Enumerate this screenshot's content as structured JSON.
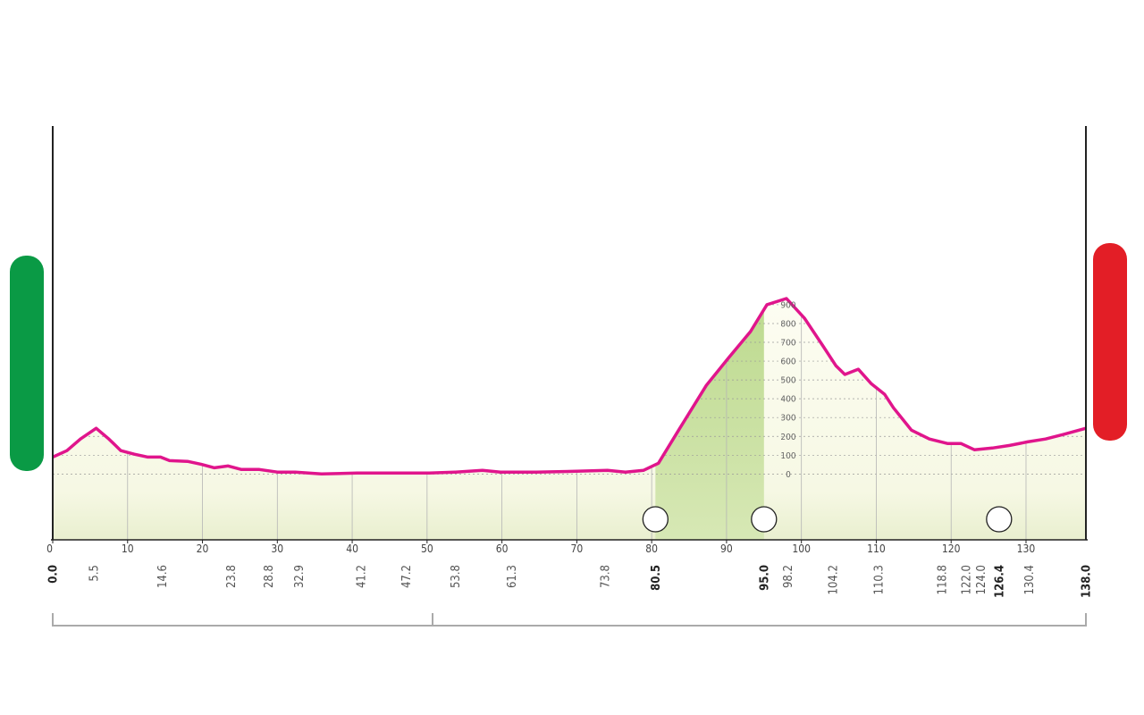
{
  "chart_data": {
    "type": "area",
    "line_color": "#e0158c",
    "fill_color": "#fbfbea",
    "climb_color": "#b9d889",
    "grid": true,
    "xlim": [
      0,
      138
    ],
    "xticks": [
      0,
      10,
      20,
      30,
      40,
      50,
      60,
      70,
      80,
      90,
      100,
      110,
      120,
      130
    ],
    "ylim": [
      -350,
      1850
    ],
    "yticks": [
      0,
      100,
      200,
      300,
      400,
      500,
      600,
      700,
      800,
      900
    ],
    "climb": [
      80.5,
      95.0
    ],
    "km_markers": [
      5.5,
      14.6,
      23.8,
      28.8,
      32.9,
      41.2,
      47.2,
      53.8,
      61.3,
      73.8,
      98.2,
      104.2,
      110.3,
      118.8,
      {
        "value": 122,
        "label": "122.0"
      },
      {
        "value": 124,
        "label": "124.0"
      },
      130.4
    ],
    "km_markers_major": [
      {
        "value": 0,
        "label": "0.0"
      },
      80.5,
      {
        "value": 95,
        "label": "95.0"
      },
      126.4,
      {
        "value": 138,
        "label": "138.0"
      }
    ],
    "x": [
      0,
      1.9,
      3.7,
      5.8,
      7.5,
      9.1,
      10.9,
      12.7,
      14.4,
      15.6,
      18,
      19.8,
      21.6,
      23.4,
      25.2,
      27.6,
      30,
      32.4,
      35.9,
      40.7,
      45.5,
      50.3,
      53.8,
      57.4,
      59.8,
      64.6,
      69.4,
      74.1,
      76.5,
      78.9,
      80.9,
      83.6,
      87.3,
      90.2,
      93.2,
      95.4,
      98,
      100.4,
      102.8,
      104.6,
      105.8,
      107.6,
      109.3,
      111.1,
      112.3,
      114.7,
      117.1,
      119.5,
      121.3,
      123.1,
      125.5,
      127.8,
      130.2,
      132.6,
      135,
      138
    ],
    "values": [
      90,
      124,
      186,
      243,
      186,
      124,
      105,
      90,
      90,
      71,
      67,
      52,
      33,
      43,
      24,
      24,
      10,
      10,
      0,
      5,
      5,
      5,
      10,
      19,
      10,
      10,
      14,
      19,
      10,
      19,
      57,
      233,
      471,
      614,
      757,
      900,
      933,
      829,
      686,
      576,
      529,
      557,
      481,
      424,
      352,
      233,
      186,
      162,
      162,
      129,
      138,
      152,
      171,
      186,
      210,
      243
    ]
  }
}
